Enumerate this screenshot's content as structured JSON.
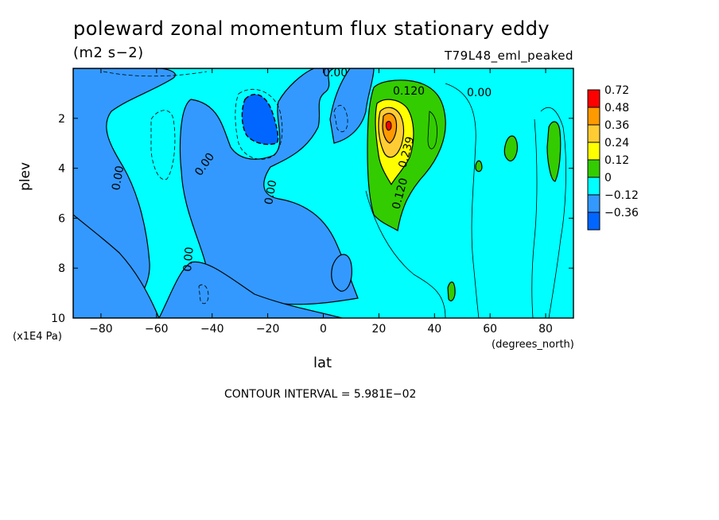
{
  "chart_data": {
    "type": "heatmap",
    "title": "poleward zonal momentum flux stationary eddy",
    "units": "(m2 s−2)",
    "run_label": "T79L48_eml_peaked",
    "xlabel": "lat",
    "x_units": "(degrees_north)",
    "ylabel": "plev",
    "y_units": "(x1E4 Pa)",
    "contour_interval_text": "CONTOUR INTERVAL = 5.981E−02",
    "xlim": [
      -90,
      90
    ],
    "ylim": [
      10,
      0
    ],
    "y_inverted": true,
    "x_ticks": [
      "−80",
      "−60",
      "−40",
      "−20",
      "0",
      "20",
      "40",
      "60",
      "80"
    ],
    "y_ticks": [
      "2",
      "4",
      "6",
      "8",
      "10"
    ],
    "legend": {
      "placement": "right",
      "labels": [
        "0.72",
        "0.48",
        "0.36",
        "0.24",
        "0.12",
        "0",
        "−0.12",
        "−0.36"
      ],
      "colors": [
        "#ff0000",
        "#ff9900",
        "#ffcc33",
        "#ffff00",
        "#33cc00",
        "#00ffff",
        "#3399ff",
        "#0066ff"
      ]
    },
    "contour_labels": [
      "0.00",
      "0.00",
      "0.00",
      "0.00",
      "0.00",
      "0.00",
      "0.120",
      "0.120",
      "0.239"
    ],
    "features": [
      {
        "name": "positive-maximum",
        "lat": 24,
        "plev": 2.5,
        "value": 0.72
      },
      {
        "name": "negative-minimum",
        "lat": -23,
        "plev": 2.3,
        "value": -0.36
      }
    ]
  }
}
